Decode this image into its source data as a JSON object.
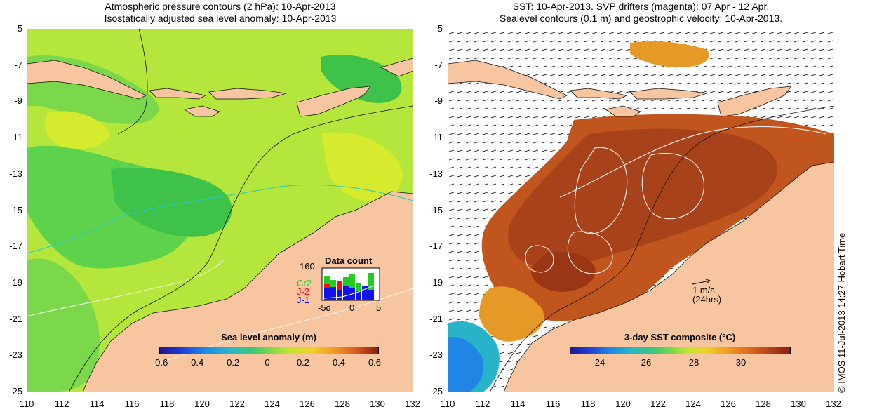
{
  "left_panel": {
    "title_line1": "Atmospheric pressure contours (2 hPa): 10-Apr-2013",
    "title_line2": "Isostatically adjusted sea level anomaly: 10-Apr-2013",
    "colorbar_title": "Sea level anomaly (m)",
    "colorbar_ticks": [
      "-0.6",
      "-0.4",
      "-0.2",
      "0",
      "0.2",
      "0.4",
      "0.6"
    ],
    "inset": {
      "title": "Data count",
      "y_max_label": "160",
      "series": [
        {
          "name": "Cr2",
          "color": "#22cc22"
        },
        {
          "name": "J-2",
          "color": "#ee1111"
        },
        {
          "name": "J-1",
          "color": "#1111ee"
        }
      ],
      "x_labels": [
        "-5d",
        "0",
        "5"
      ]
    }
  },
  "right_panel": {
    "title_line1": "SST: 10-Apr-2013. SVP drifters (magenta): 07 Apr - 12 Apr.",
    "title_line2": "Sealevel contours (0.1 m) and geostrophic velocity: 10-Apr-2013.",
    "colorbar_title": "3-day SST composite (°C)",
    "colorbar_ticks": [
      "24",
      "26",
      "28",
      "30"
    ],
    "scale_arrow_label1": "1 m/s",
    "scale_arrow_label2": "(24hrs)"
  },
  "axes": {
    "y_ticks": [
      "-5",
      "-7",
      "-9",
      "-11",
      "-13",
      "-15",
      "-17",
      "-19",
      "-21",
      "-23",
      "-25"
    ],
    "x_ticks": [
      "110",
      "112",
      "114",
      "116",
      "118",
      "120",
      "122",
      "124",
      "126",
      "128",
      "130",
      "132"
    ]
  },
  "credit": "© IMOS 11-Jul-2013 14:27 Hobart Time",
  "colors": {
    "land": "#f7c59f",
    "ocean_left": "#b4e63c",
    "ocean_right": "#c0561e"
  }
}
